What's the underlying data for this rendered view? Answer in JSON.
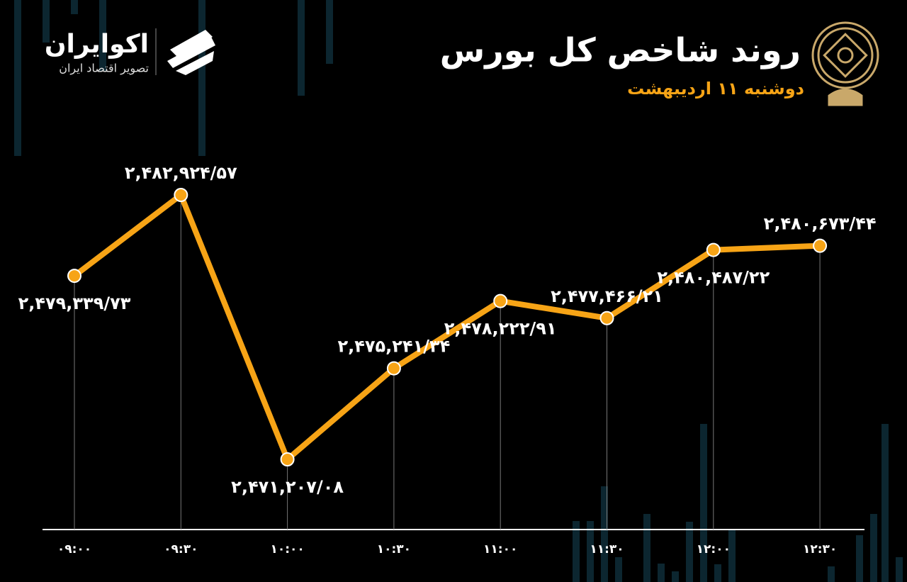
{
  "brand": {
    "name": "اکوایران",
    "tagline": "تصویر اقتصاد ایران"
  },
  "chart_data": {
    "type": "line",
    "title": "روند شاخص کل بورس",
    "subtitle": "دوشنبه ۱۱ اردیبهشت",
    "categories": [
      "۰۹:۰۰",
      "۰۹:۳۰",
      "۱۰:۰۰",
      "۱۰:۳۰",
      "۱۱:۰۰",
      "۱۱:۳۰",
      "۱۲:۰۰",
      "۱۲:۳۰"
    ],
    "series": [
      {
        "color": "#f7a416",
        "values": [
          2479339.73,
          2482924.57,
          2471207.08,
          2475241.34,
          2478222.91,
          2477466.21,
          2480487.22,
          2480673.44
        ],
        "value_labels": [
          "۲,۴۷۹,۳۳۹/۷۳",
          "۲,۴۸۲,۹۲۴/۵۷",
          "۲,۴۷۱,۲۰۷/۰۸",
          "۲,۴۷۵,۲۴۱/۳۴",
          "۲,۴۷۸,۲۲۲/۹۱",
          "۲,۴۷۷,۴۶۶/۲۱",
          "۲,۴۸۰,۴۸۷/۲۲",
          "۲,۴۸۰,۶۷۳/۴۴"
        ]
      }
    ]
  }
}
